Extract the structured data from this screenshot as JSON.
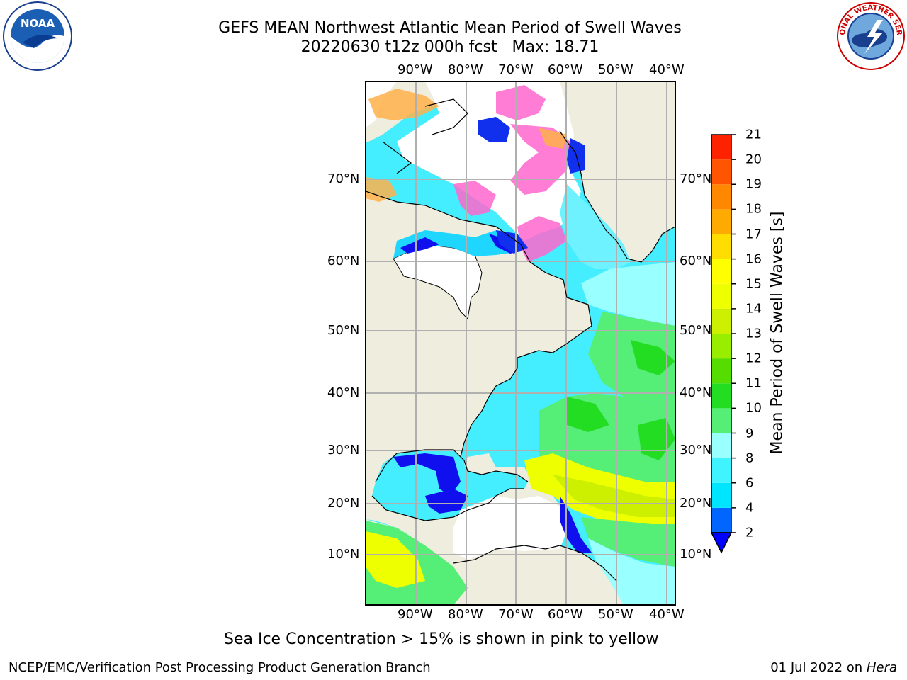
{
  "header": {
    "title_line1": "GEFS MEAN Northwest Atlantic Mean Period of Swell Waves",
    "title_line2": "20220630 t12z 000h fcst   Max: 18.71"
  },
  "logos": {
    "left_text": "NOAA",
    "right_text": "NATIONAL WEATHER SERVICE"
  },
  "map": {
    "lon_labels": [
      "90°W",
      "80°W",
      "70°W",
      "60°W",
      "50°W",
      "40°W"
    ],
    "lat_labels": [
      "70°N",
      "60°N",
      "50°N",
      "40°N",
      "30°N",
      "20°N",
      "10°N"
    ],
    "colors": {
      "land": "#efedde",
      "no_data": "#ffffff",
      "grid": "#b0b0b0",
      "coast": "#000000"
    }
  },
  "colorbar": {
    "title": "Mean Period of Swell Waves [s]",
    "ticks": [
      "2",
      "4",
      "6",
      "8",
      "9",
      "10",
      "11",
      "12",
      "13",
      "14",
      "15",
      "16",
      "17",
      "18",
      "19",
      "20",
      "21"
    ],
    "colors": [
      "#0066ff",
      "#00e5ff",
      "#40f4ff",
      "#99ffff",
      "#55ee77",
      "#22dd22",
      "#55dd00",
      "#99ee00",
      "#ccf000",
      "#eeff00",
      "#ffff00",
      "#ffdd00",
      "#ffaa00",
      "#ff8800",
      "#ff5500",
      "#ff2200"
    ],
    "under_color": "#0000ff"
  },
  "footer": {
    "ice_note": "Sea Ice Concentration > 15% is shown in pink to yellow",
    "branch": "NCEP/EMC/Verification Post Processing Product Generation Branch",
    "date": "01 Jul 2022 on",
    "host": "Hera"
  }
}
